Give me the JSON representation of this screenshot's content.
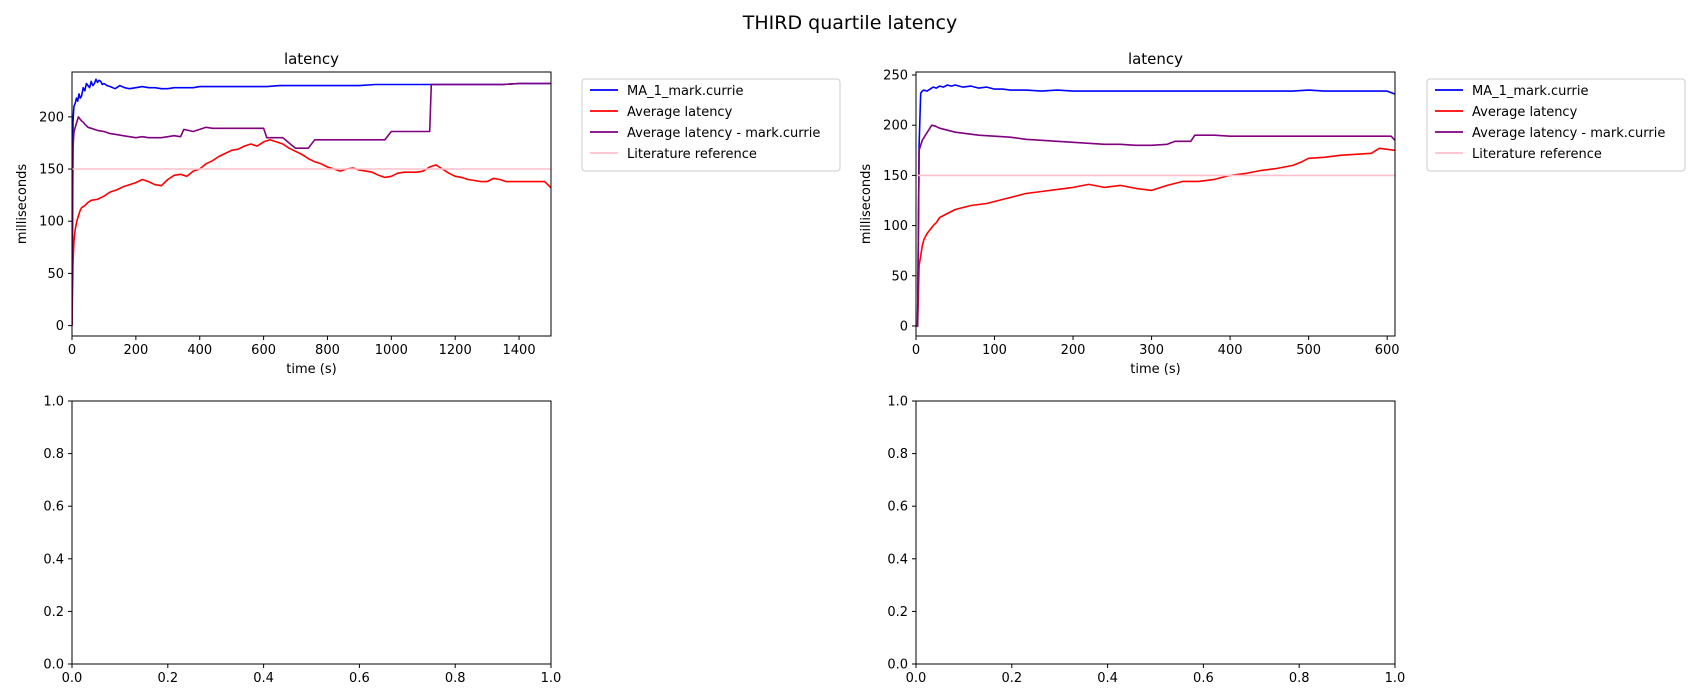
{
  "figure": {
    "suptitle": "THIRD quartile latency"
  },
  "colors": {
    "ma": "#0000ff",
    "avg": "#ff0000",
    "avg_user": "#800080",
    "lit": "#ffc0cb"
  },
  "chart_data": [
    {
      "type": "line",
      "title": "latency",
      "xlabel": "time (s)",
      "ylabel": "milliseconds",
      "xlim": [
        0,
        1500
      ],
      "ylim": [
        -10,
        243
      ],
      "xticks": [
        0,
        200,
        400,
        600,
        800,
        1000,
        1200,
        1400
      ],
      "yticks": [
        0,
        50,
        100,
        150,
        200
      ],
      "legend": "outside-upper-right",
      "series": [
        {
          "name": "MA_1_mark.currie",
          "color": "#0000ff",
          "x": [
            0,
            3,
            6,
            10,
            14,
            18,
            22,
            26,
            30,
            35,
            40,
            45,
            50,
            55,
            60,
            65,
            70,
            75,
            80,
            85,
            90,
            95,
            100,
            110,
            120,
            135,
            150,
            165,
            180,
            200,
            220,
            240,
            260,
            280,
            300,
            320,
            340,
            360,
            380,
            400,
            430,
            460,
            490,
            520,
            550,
            580,
            610,
            650,
            700,
            750,
            800,
            850,
            900,
            950,
            1000,
            1050,
            1100,
            1150,
            1200,
            1250,
            1300,
            1350,
            1400,
            1450,
            1500
          ],
          "y": [
            0,
            195,
            210,
            213,
            218,
            215,
            222,
            218,
            220,
            228,
            225,
            232,
            230,
            228,
            234,
            230,
            232,
            236,
            233,
            235,
            234,
            231,
            232,
            230,
            229,
            227,
            230,
            228,
            227,
            228,
            229,
            228,
            228,
            227,
            227,
            228,
            228,
            228,
            228,
            229,
            229,
            229,
            229,
            229,
            229,
            229,
            229,
            230,
            230,
            230,
            230,
            230,
            230,
            231,
            231,
            231,
            231,
            231,
            231,
            231,
            231,
            231,
            232,
            232,
            232
          ]
        },
        {
          "name": "Average latency",
          "color": "#ff0000",
          "x": [
            0,
            3,
            6,
            10,
            15,
            20,
            25,
            30,
            40,
            50,
            60,
            80,
            100,
            120,
            140,
            160,
            180,
            200,
            220,
            240,
            260,
            280,
            300,
            320,
            340,
            360,
            380,
            400,
            420,
            440,
            460,
            480,
            500,
            520,
            540,
            560,
            580,
            600,
            620,
            640,
            660,
            680,
            700,
            720,
            740,
            760,
            780,
            800,
            820,
            840,
            860,
            880,
            900,
            920,
            940,
            960,
            980,
            1000,
            1020,
            1040,
            1060,
            1080,
            1100,
            1120,
            1140,
            1160,
            1180,
            1200,
            1220,
            1240,
            1260,
            1280,
            1300,
            1320,
            1340,
            1360,
            1380,
            1400,
            1420,
            1440,
            1460,
            1480,
            1500
          ],
          "y": [
            0,
            60,
            80,
            92,
            100,
            105,
            110,
            113,
            115,
            118,
            120,
            121,
            124,
            128,
            130,
            133,
            135,
            137,
            140,
            138,
            135,
            134,
            140,
            144,
            145,
            143,
            148,
            150,
            155,
            158,
            162,
            165,
            168,
            169,
            172,
            174,
            172,
            176,
            178,
            176,
            174,
            170,
            167,
            164,
            160,
            157,
            155,
            152,
            150,
            148,
            150,
            151,
            149,
            148,
            147,
            144,
            142,
            143,
            146,
            147,
            147,
            147,
            148,
            152,
            154,
            150,
            146,
            143,
            142,
            140,
            139,
            138,
            138,
            141,
            140,
            138,
            138,
            138,
            138,
            138,
            138,
            138,
            132
          ]
        },
        {
          "name": "Average latency - mark.currie",
          "color": "#800080",
          "x": [
            0,
            3,
            6,
            10,
            15,
            20,
            25,
            30,
            35,
            40,
            50,
            60,
            70,
            80,
            100,
            120,
            140,
            160,
            180,
            200,
            220,
            240,
            260,
            280,
            300,
            320,
            340,
            350,
            380,
            400,
            420,
            440,
            460,
            480,
            500,
            520,
            540,
            560,
            580,
            600,
            610,
            640,
            660,
            680,
            700,
            720,
            740,
            760,
            780,
            800,
            850,
            900,
            950,
            980,
            1000,
            1050,
            1100,
            1120,
            1125,
            1150,
            1200,
            1250,
            1300,
            1350,
            1400,
            1450,
            1500
          ],
          "y": [
            0,
            170,
            185,
            190,
            195,
            200,
            198,
            196,
            195,
            193,
            190,
            189,
            188,
            187,
            186,
            184,
            183,
            182,
            181,
            180,
            181,
            180,
            180,
            180,
            181,
            182,
            181,
            188,
            186,
            188,
            190,
            189,
            189,
            189,
            189,
            189,
            189,
            189,
            189,
            189,
            180,
            180,
            180,
            175,
            170,
            170,
            170,
            178,
            178,
            178,
            178,
            178,
            178,
            178,
            186,
            186,
            186,
            186,
            231,
            231,
            231,
            231,
            231,
            231,
            232,
            232,
            232
          ]
        },
        {
          "name": "Literature reference",
          "color": "#ffc0cb",
          "x": [
            0,
            1500
          ],
          "y": [
            150,
            150
          ]
        }
      ]
    },
    {
      "type": "line",
      "title": "latency",
      "xlabel": "time (s)",
      "ylabel": "milliseconds",
      "xlim": [
        0,
        610
      ],
      "ylim": [
        -10,
        253
      ],
      "xticks": [
        0,
        100,
        200,
        300,
        400,
        500,
        600
      ],
      "yticks": [
        0,
        50,
        100,
        150,
        200,
        250
      ],
      "legend": "outside-upper-right",
      "series": [
        {
          "name": "MA_1_mark.currie",
          "color": "#0000ff",
          "x": [
            0,
            2,
            4,
            6,
            8,
            10,
            14,
            18,
            22,
            26,
            30,
            35,
            40,
            45,
            50,
            55,
            60,
            70,
            80,
            90,
            100,
            110,
            120,
            140,
            160,
            180,
            200,
            220,
            240,
            260,
            280,
            300,
            320,
            340,
            360,
            380,
            400,
            420,
            440,
            460,
            480,
            500,
            520,
            540,
            560,
            580,
            600,
            610
          ],
          "y": [
            0,
            0,
            180,
            232,
            234,
            235,
            234,
            236,
            238,
            237,
            239,
            238,
            240,
            239,
            240,
            239,
            238,
            239,
            237,
            238,
            236,
            236,
            235,
            235,
            234,
            235,
            234,
            234,
            234,
            234,
            234,
            234,
            234,
            234,
            234,
            234,
            234,
            234,
            234,
            234,
            234,
            235,
            234,
            234,
            234,
            234,
            234,
            231
          ]
        },
        {
          "name": "Average latency",
          "color": "#ff0000",
          "x": [
            0,
            2,
            4,
            6,
            8,
            10,
            14,
            18,
            22,
            26,
            30,
            40,
            50,
            60,
            70,
            80,
            90,
            100,
            120,
            140,
            160,
            180,
            200,
            220,
            240,
            260,
            280,
            300,
            320,
            340,
            360,
            380,
            400,
            420,
            440,
            460,
            480,
            490,
            500,
            520,
            540,
            560,
            580,
            590,
            600,
            610
          ],
          "y": [
            0,
            0,
            60,
            70,
            80,
            86,
            92,
            96,
            100,
            103,
            108,
            112,
            116,
            118,
            120,
            121,
            122,
            124,
            128,
            132,
            134,
            136,
            138,
            141,
            138,
            140,
            137,
            135,
            140,
            144,
            144,
            146,
            150,
            152,
            155,
            157,
            160,
            163,
            167,
            168,
            170,
            171,
            172,
            177,
            176,
            175
          ]
        },
        {
          "name": "Average latency - mark.currie",
          "color": "#800080",
          "x": [
            0,
            2,
            4,
            6,
            8,
            12,
            16,
            20,
            25,
            30,
            40,
            50,
            60,
            80,
            100,
            120,
            140,
            160,
            180,
            200,
            220,
            240,
            260,
            280,
            300,
            320,
            330,
            350,
            355,
            380,
            400,
            420,
            440,
            460,
            480,
            500,
            520,
            540,
            560,
            580,
            600,
            605,
            610
          ],
          "y": [
            0,
            0,
            175,
            180,
            185,
            190,
            195,
            200,
            199,
            197,
            195,
            193,
            192,
            190,
            189,
            188,
            186,
            185,
            184,
            183,
            182,
            181,
            181,
            180,
            180,
            181,
            184,
            184,
            190,
            190,
            189,
            189,
            189,
            189,
            189,
            189,
            189,
            189,
            189,
            189,
            189,
            189,
            185
          ]
        },
        {
          "name": "Literature reference",
          "color": "#ffc0cb",
          "x": [
            0,
            610
          ],
          "y": [
            150,
            150
          ]
        }
      ]
    },
    {
      "type": "line",
      "title": "",
      "xlabel": "",
      "ylabel": "",
      "xlim": [
        0,
        1
      ],
      "ylim": [
        0,
        1
      ],
      "xticks": [
        0,
        0.2,
        0.4,
        0.6,
        0.8,
        1.0
      ],
      "yticks": [
        0,
        0.2,
        0.4,
        0.6,
        0.8,
        1.0
      ],
      "series": []
    },
    {
      "type": "line",
      "title": "",
      "xlabel": "",
      "ylabel": "",
      "xlim": [
        0,
        1
      ],
      "ylim": [
        0,
        1
      ],
      "xticks": [
        0,
        0.2,
        0.4,
        0.6,
        0.8,
        1.0
      ],
      "yticks": [
        0,
        0.2,
        0.4,
        0.6,
        0.8,
        1.0
      ],
      "series": []
    }
  ]
}
